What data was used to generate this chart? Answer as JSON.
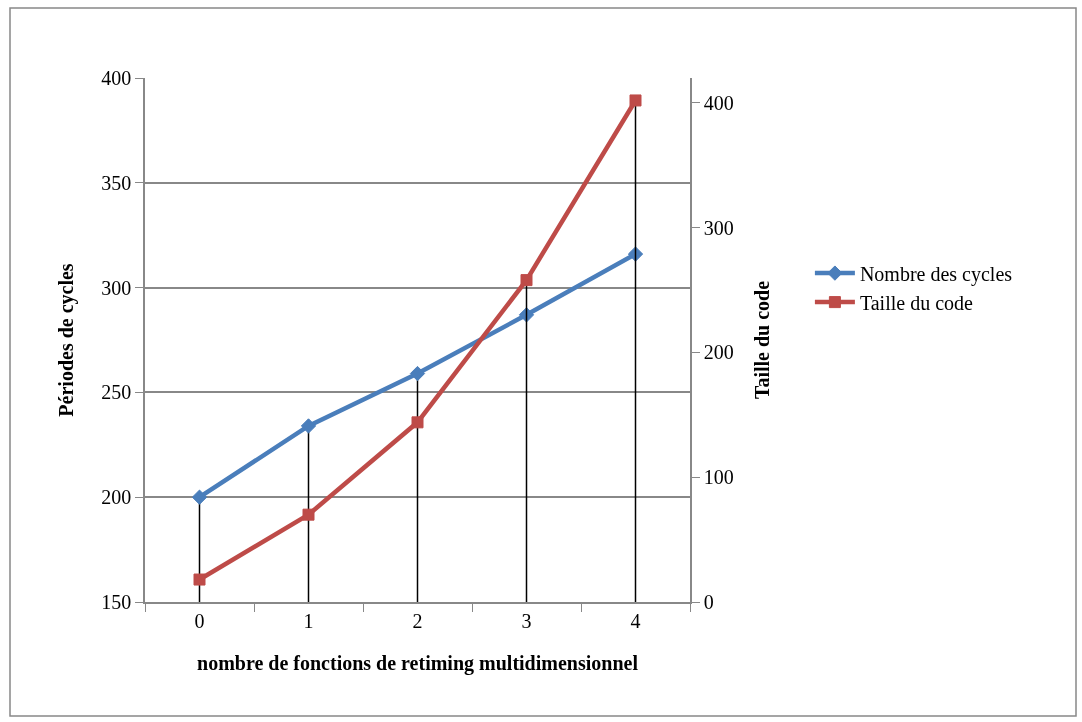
{
  "chart_data": {
    "type": "line",
    "xlabel": "nombre de fonctions de retiming multidimensionnel",
    "ylabel": "Périodes de cycles",
    "y2label": "Taille du code",
    "categories": [
      "0",
      "1",
      "2",
      "3",
      "4"
    ],
    "series": [
      {
        "name": "Nombre des cycles",
        "color": "#4a7ebb",
        "marker": "diamond",
        "values": [
          200,
          234,
          259,
          287,
          316
        ],
        "errors": [
          [
            150,
            200
          ],
          [
            150,
            234
          ],
          [
            150,
            259
          ],
          null,
          null
        ]
      },
      {
        "name": "Taille du code",
        "color": "#be4b48",
        "marker": "square",
        "axis": "y2",
        "values": [
          18,
          70,
          144,
          258,
          402
        ],
        "errors": [
          null,
          null,
          null,
          [
            0,
            258
          ],
          [
            0,
            402
          ]
        ]
      }
    ],
    "ylim": [
      150,
      400
    ],
    "yticks": [
      150,
      200,
      250,
      300,
      350,
      400
    ],
    "y2lim": [
      0,
      420
    ],
    "y2ticks": [
      0,
      100,
      200,
      300,
      400
    ],
    "grid": "y",
    "legend": "right",
    "line_style": "solid"
  }
}
